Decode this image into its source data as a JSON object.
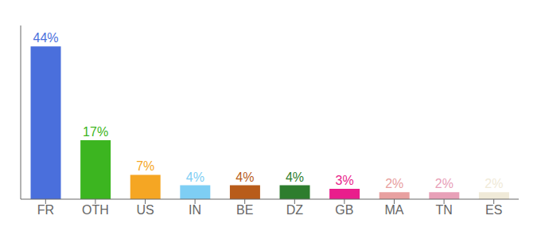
{
  "chart_data": {
    "type": "bar",
    "categories": [
      "FR",
      "OTH",
      "US",
      "IN",
      "BE",
      "DZ",
      "GB",
      "MA",
      "TN",
      "ES"
    ],
    "values": [
      44,
      17,
      7,
      4,
      4,
      4,
      3,
      2,
      2,
      2
    ],
    "value_labels": [
      "44%",
      "17%",
      "7%",
      "4%",
      "4%",
      "4%",
      "3%",
      "2%",
      "2%",
      "2%"
    ],
    "colors": [
      "#4a6fdc",
      "#3cb520",
      "#f5a623",
      "#7ecef4",
      "#b85c1a",
      "#2e7d2e",
      "#e91e8c",
      "#e8a0a0",
      "#e8a0b8",
      "#f0ead8"
    ],
    "ylim": [
      0,
      50
    ],
    "data_labels": true,
    "tick_labels": "x",
    "grid": false
  }
}
